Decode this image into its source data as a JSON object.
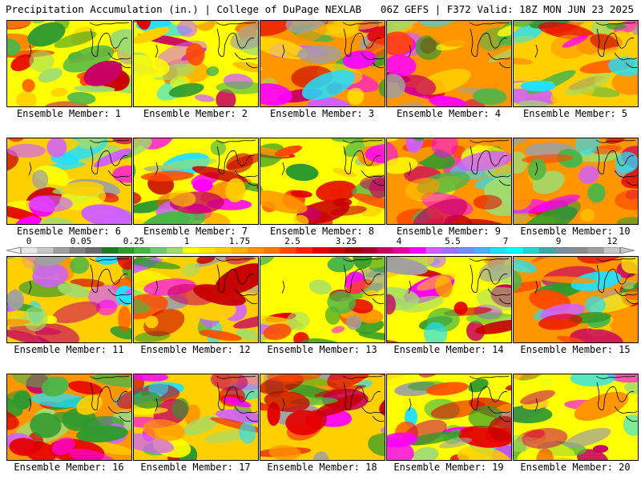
{
  "header": {
    "title": "Precipitation Accumulation (in.) | College of DuPage NEXLAB",
    "run_info": "06Z GEFS | F372 Valid: 18Z MON JUN 23 2025"
  },
  "colorbar": {
    "labels": [
      "0",
      "0.05",
      "0.25",
      "1",
      "1.75",
      "2.5",
      "3.25",
      "4",
      "5.5",
      "7",
      "9",
      "12"
    ],
    "colors": [
      "#e8e8e8",
      "#c8c8c8",
      "#a0a0a0",
      "#828282",
      "#6b6b6b",
      "#1f7a1f",
      "#2e9a2e",
      "#49b649",
      "#74c874",
      "#9fdc6e",
      "#ffff00",
      "#ffe800",
      "#ffd000",
      "#ffb400",
      "#ff9600",
      "#ff7800",
      "#ff4a00",
      "#ff1e00",
      "#e60000",
      "#c80000",
      "#a00000",
      "#a00030",
      "#c80064",
      "#e6009c",
      "#ff00ff",
      "#d060ff",
      "#a070ff",
      "#7090ff",
      "#50b0ff",
      "#20e0ff",
      "#00ffff",
      "#30d0d0",
      "#40a8a8",
      "#7890a0",
      "#8c8c8c",
      "#a0a0a0",
      "#c8c8c8"
    ]
  },
  "members": [
    {
      "caption": "Ensemble Member: 1"
    },
    {
      "caption": "Ensemble Member: 2"
    },
    {
      "caption": "Ensemble Member: 3"
    },
    {
      "caption": "Ensemble Member: 4"
    },
    {
      "caption": "Ensemble Member: 5"
    },
    {
      "caption": "Ensemble Member: 6"
    },
    {
      "caption": "Ensemble Member: 7"
    },
    {
      "caption": "Ensemble Member: 8"
    },
    {
      "caption": "Ensemble Member: 9"
    },
    {
      "caption": "Ensemble Member: 10"
    },
    {
      "caption": "Ensemble Member: 11"
    },
    {
      "caption": "Ensemble Member: 12"
    },
    {
      "caption": "Ensemble Member: 13"
    },
    {
      "caption": "Ensemble Member: 14"
    },
    {
      "caption": "Ensemble Member: 15"
    },
    {
      "caption": "Ensemble Member: 16"
    },
    {
      "caption": "Ensemble Member: 17"
    },
    {
      "caption": "Ensemble Member: 18"
    },
    {
      "caption": "Ensemble Member: 19"
    },
    {
      "caption": "Ensemble Member: 20"
    }
  ]
}
